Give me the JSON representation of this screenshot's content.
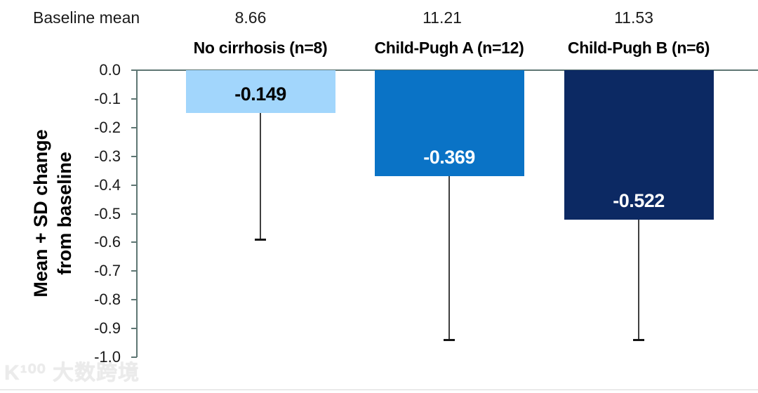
{
  "chart_data": {
    "type": "bar",
    "title": "",
    "ylabel_line1": "Mean + SD change",
    "ylabel_line2": "from baseline",
    "baseline_mean_label": "Baseline mean",
    "baseline_means": [
      "8.66",
      "11.21",
      "11.53"
    ],
    "categories": [
      "No cirrhosis (n=8)",
      "Child-Pugh A (n=12)",
      "Child-Pugh B (n=6)"
    ],
    "values": [
      -0.149,
      -0.369,
      -0.522
    ],
    "value_labels": [
      "-0.149",
      "-0.369",
      "-0.522"
    ],
    "error_bar_ends": [
      -0.59,
      -0.94,
      -0.94
    ],
    "ylim": [
      0.0,
      -1.0
    ],
    "yticks": [
      "0.0",
      "-0.1",
      "-0.2",
      "-0.3",
      "-0.4",
      "-0.5",
      "-0.6",
      "-0.7",
      "-0.8",
      "-0.9",
      "-1.0"
    ],
    "grid": false,
    "legend": false,
    "bar_colors": [
      "#A2D6FC",
      "#0A73C6",
      "#0C2963"
    ],
    "bar_label_colors": [
      "#000000",
      "#FFFFFF",
      "#FFFFFF"
    ],
    "axis_color": "#5E7673",
    "error_bar_color": "#3F3F3F",
    "error_cap_color": "#141414"
  },
  "watermark": {
    "logo": "K¹⁰⁰",
    "text": " 大数跨境"
  }
}
